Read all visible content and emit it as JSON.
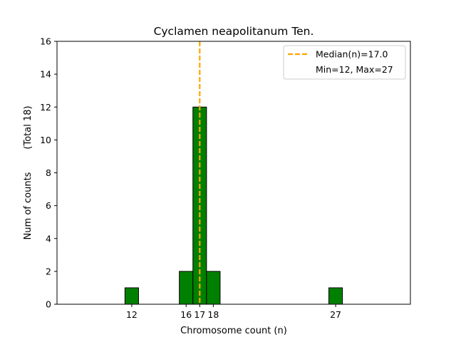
{
  "chart_data": {
    "type": "bar",
    "title": "Cyclamen neapolitanum Ten.",
    "xlabel": "Chromosome count (n)",
    "ylabel": "Num of counts",
    "ylabel_total": "(Total 18)",
    "xlim": [
      6.5,
      32.5
    ],
    "ylim": [
      0,
      16
    ],
    "yticks": [
      0,
      2,
      4,
      6,
      8,
      10,
      12,
      14,
      16
    ],
    "xticks": [
      12,
      16,
      17,
      18,
      27
    ],
    "bins": [
      {
        "x": 12,
        "count": 1
      },
      {
        "x": 16,
        "count": 2
      },
      {
        "x": 17,
        "count": 12
      },
      {
        "x": 18,
        "count": 2
      },
      {
        "x": 27,
        "count": 1
      }
    ],
    "baseline_end": 30,
    "bar_color": "#008000",
    "bar_edge_color": "#000000",
    "median": 17.0,
    "median_color": "#ffa500",
    "legend": {
      "position": "top-right",
      "entries": [
        "Median(n)=17.0",
        "Min=12, Max=27"
      ]
    }
  }
}
